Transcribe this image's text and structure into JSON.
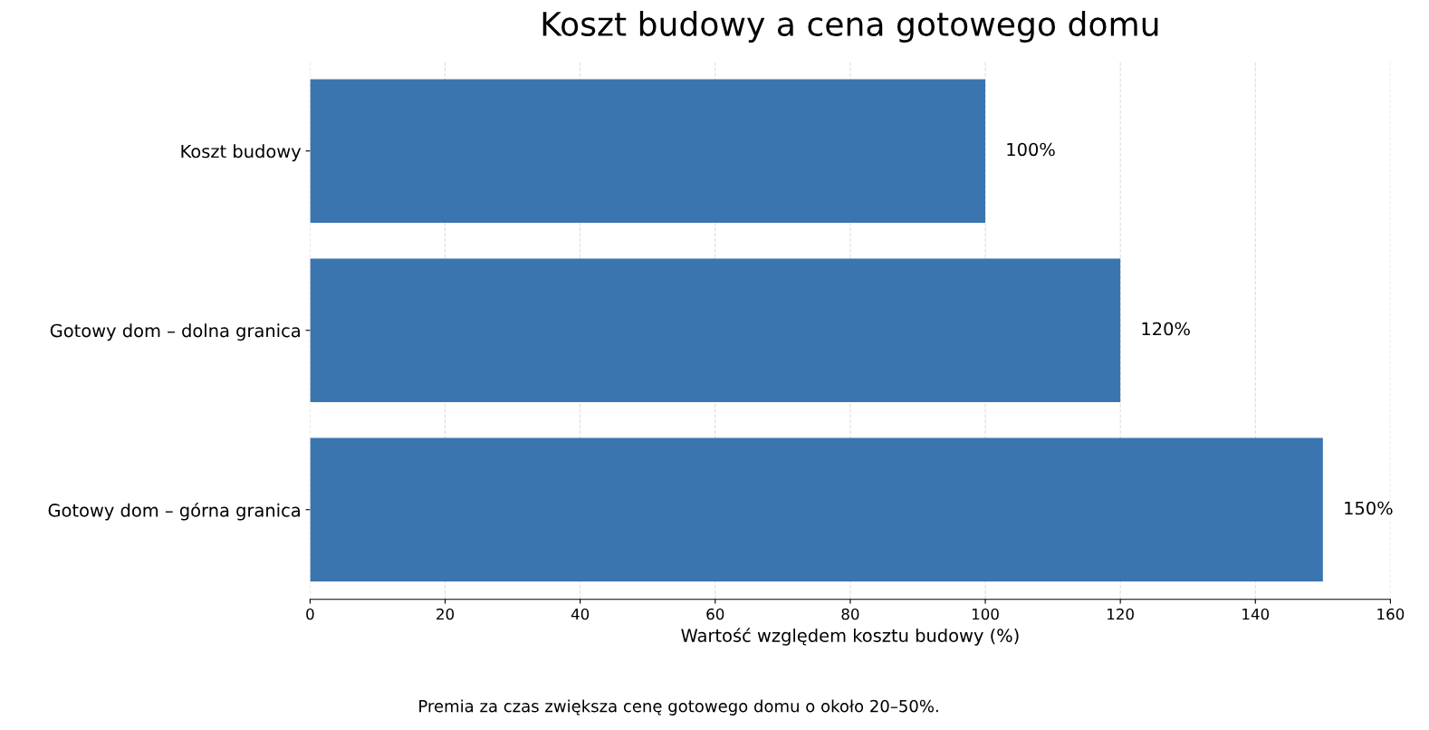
{
  "chart_data": {
    "type": "bar",
    "orientation": "horizontal",
    "title": "Koszt budowy a cena gotowego domu",
    "xlabel": "Wartość względem kosztu budowy (%)",
    "categories": [
      "Koszt budowy",
      "Gotowy dom – dolna granica",
      "Gotowy dom – górna granica"
    ],
    "values": [
      100,
      120,
      150
    ],
    "value_labels": [
      "100%",
      "120%",
      "150%"
    ],
    "color": "#3b75af",
    "xlim": [
      0,
      160
    ],
    "xticks": [
      0,
      20,
      40,
      60,
      80,
      100,
      120,
      140,
      160
    ],
    "grid": "x",
    "annotations": [
      "Premia za czas zwiększa cenę gotowego domu o około 20–50%."
    ]
  }
}
